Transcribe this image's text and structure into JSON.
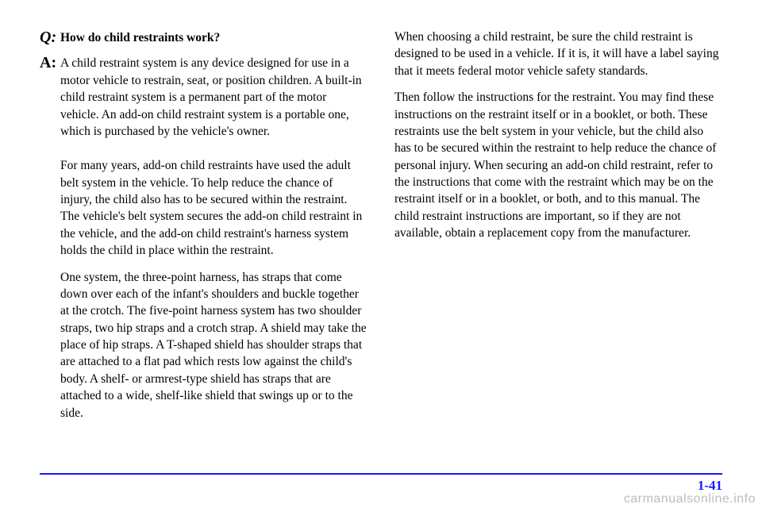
{
  "left": {
    "q_label": "Q:",
    "a_label": "A:",
    "question": "How do child restraints work?",
    "answer_p1": "A child restraint system is any device designed for use in a motor vehicle to restrain, seat, or position children. A built-in child restraint system is a permanent part of the motor vehicle. An add-on child restraint system is a portable one, which is purchased by the vehicle's owner.",
    "answer_p2": "For many years, add-on child restraints have used the adult belt system in the vehicle. To help reduce the chance of injury, the child also has to be secured within the restraint. The vehicle's belt system secures the add-on child restraint in the vehicle, and the add-on child restraint's harness system holds the child in place within the restraint.",
    "answer_p3": "One system, the three-point harness, has straps that come down over each of the infant's shoulders and buckle together at the crotch. The five-point harness system has two shoulder straps, two hip straps and a crotch strap. A shield may take the place of hip straps. A T-shaped shield has shoulder straps that are attached to a flat pad which rests low against the child's body. A shelf- or armrest-type shield has straps that are attached to a wide, shelf-like shield that swings up or to the side."
  },
  "right": {
    "p1": "When choosing a child restraint, be sure the child restraint is designed to be used in a vehicle. If it is, it will have a label saying that it meets federal motor vehicle safety standards.",
    "p2": "Then follow the instructions for the restraint. You may find these instructions on the restraint itself or in a booklet, or both. These restraints use the belt system in your vehicle, but the child also has to be secured within the restraint to help reduce the chance of personal injury. When securing an add-on child restraint, refer to the instructions that come with the restraint which may be on the restraint itself or in a booklet, or both, and to this manual. The child restraint instructions are important, so if they are not available, obtain a replacement copy from the manufacturer."
  },
  "page_number": "1-41",
  "watermark": "carmanualsonline.info",
  "colors": {
    "accent": "#1a1aff",
    "text": "#000000",
    "watermark": "#bdbdbd",
    "background": "#ffffff"
  }
}
